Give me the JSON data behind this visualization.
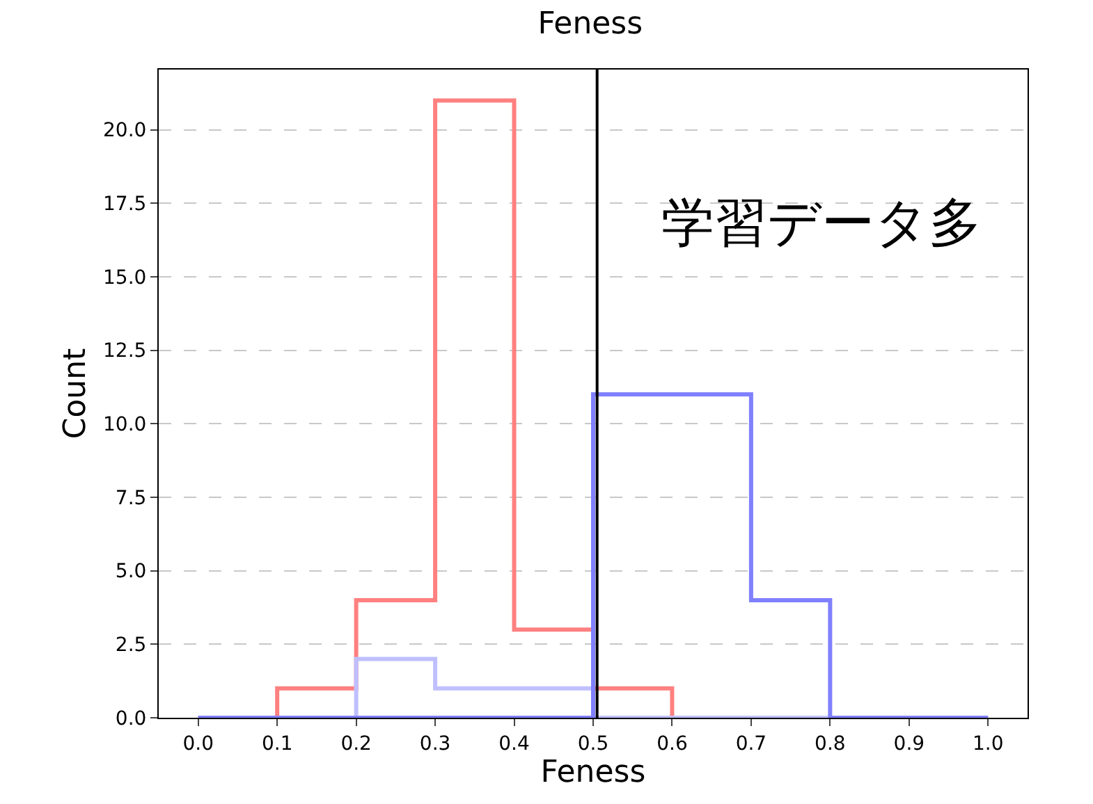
{
  "chart_data": {
    "type": "histogram",
    "title": "Feness",
    "xlabel": "Feness",
    "ylabel": "Count",
    "bins": [
      0.0,
      0.1,
      0.2,
      0.3,
      0.4,
      0.5,
      0.6,
      0.7,
      0.8,
      0.9,
      1.0
    ],
    "series": [
      {
        "color": "#ff8080",
        "values": [
          0,
          1,
          4,
          21,
          3,
          1,
          0,
          0,
          0,
          0
        ]
      },
      {
        "color": "#bfbfff",
        "values": [
          0,
          0,
          2,
          1,
          1,
          0,
          0,
          0,
          0,
          0
        ]
      },
      {
        "color": "#8080ff",
        "values": [
          0,
          0,
          0,
          0,
          0,
          11,
          11,
          4,
          0,
          0
        ]
      }
    ],
    "xlim": [
      -0.05,
      1.05
    ],
    "xticks": [
      {
        "value": 0,
        "label": "0.0"
      },
      0.1,
      0.2,
      0.3,
      0.4,
      0.5,
      0.6,
      0.7,
      0.8,
      0.9,
      {
        "value": 1,
        "label": "1.0"
      }
    ],
    "ylim": [
      0,
      22.05
    ],
    "yticks": [
      {
        "value": 0,
        "label": "0.0"
      },
      2.5,
      {
        "value": 5,
        "label": "5.0"
      },
      7.5,
      {
        "value": 10,
        "label": "10.0"
      },
      12.5,
      {
        "value": 15,
        "label": "15.0"
      },
      17.5,
      {
        "value": 20,
        "label": "20.0"
      }
    ],
    "grid": "y",
    "ref_lines": [
      {
        "axis": "x",
        "value": 0.505,
        "color": "#000000"
      }
    ],
    "annotations": [
      "学習データ多"
    ]
  }
}
